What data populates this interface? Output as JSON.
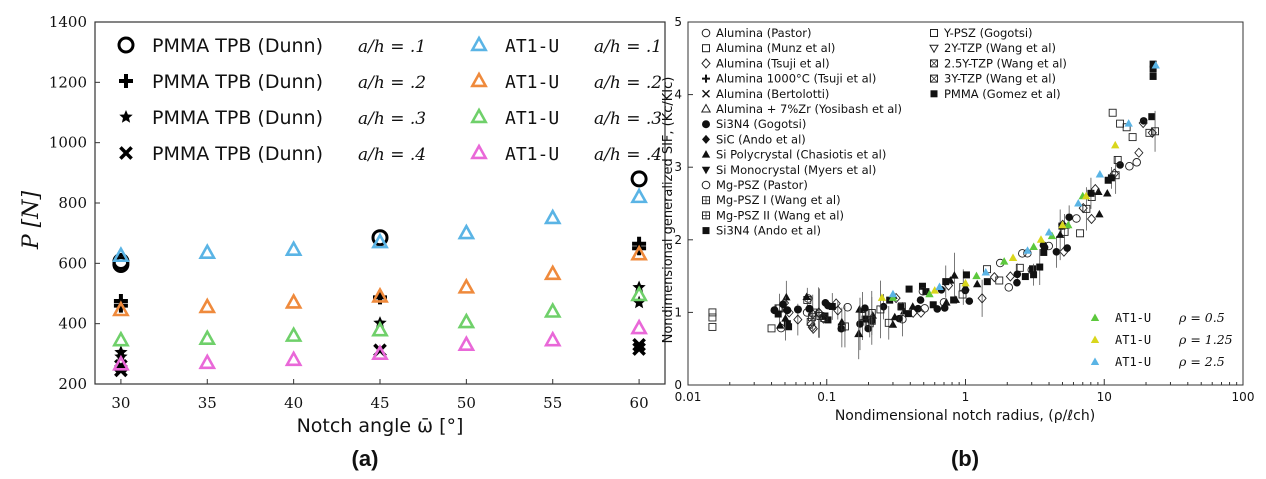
{
  "panel_labels": {
    "a": "(a)",
    "b": "(b)"
  },
  "chart_data": [
    {
      "type": "scatter",
      "panel": "(a)",
      "xlabel": "Notch angle ω̄ [°]",
      "ylabel": "P [N]",
      "xlim": [
        28.5,
        61.5
      ],
      "ylim": [
        200,
        1400
      ],
      "xticks": [
        30,
        35,
        40,
        45,
        50,
        55,
        60
      ],
      "yticks": [
        200,
        400,
        600,
        800,
        1000,
        1200,
        1400
      ],
      "grid": false,
      "legend": "top, two columns",
      "series": [
        {
          "name": "PMMA TPB (Dunn) a/h = .1",
          "marker": "circle",
          "color": "#000000",
          "x": [
            30,
            30,
            45,
            60
          ],
          "y": [
            596,
            606,
            685,
            880
          ]
        },
        {
          "name": "PMMA TPB (Dunn) a/h = .2",
          "marker": "plus",
          "color": "#000000",
          "x": [
            30,
            30,
            45,
            60,
            60
          ],
          "y": [
            460,
            475,
            487,
            650,
            665
          ]
        },
        {
          "name": "PMMA TPB (Dunn) a/h = .3",
          "marker": "star",
          "color": "#000000",
          "x": [
            30,
            30,
            45,
            60,
            60
          ],
          "y": [
            290,
            305,
            402,
            470,
            520
          ]
        },
        {
          "name": "PMMA TPB (Dunn) a/h = .4",
          "marker": "x",
          "color": "#000000",
          "x": [
            30,
            30,
            45,
            60,
            60
          ],
          "y": [
            245,
            260,
            312,
            316,
            330
          ]
        },
        {
          "name": "AT1-U a/h = .1",
          "marker": "triangle",
          "color": "#5ab4e5",
          "x": [
            30,
            35,
            40,
            45,
            50,
            55,
            60
          ],
          "y": [
            625,
            635,
            645,
            670,
            700,
            750,
            820
          ]
        },
        {
          "name": "AT1-U a/h = .2",
          "marker": "triangle",
          "color": "#ef8a3c",
          "x": [
            30,
            35,
            40,
            45,
            50,
            55,
            60
          ],
          "y": [
            445,
            455,
            470,
            490,
            520,
            565,
            630
          ]
        },
        {
          "name": "AT1-U a/h = .3",
          "marker": "triangle",
          "color": "#6fd06a",
          "x": [
            30,
            35,
            40,
            45,
            50,
            55,
            60
          ],
          "y": [
            345,
            350,
            360,
            378,
            405,
            440,
            495
          ]
        },
        {
          "name": "AT1-U a/h = .4",
          "marker": "triangle",
          "color": "#e968d8",
          "x": [
            30,
            35,
            40,
            45,
            50,
            55,
            60
          ],
          "y": [
            265,
            270,
            280,
            300,
            330,
            345,
            385
          ]
        }
      ],
      "legend_entries": [
        {
          "label": "PMMA TPB (Dunn)",
          "ratio": "a/h = .1",
          "marker": "circle",
          "color": "#000000"
        },
        {
          "label": "PMMA TPB (Dunn)",
          "ratio": "a/h = .2",
          "marker": "plus",
          "color": "#000000"
        },
        {
          "label": "PMMA TPB (Dunn)",
          "ratio": "a/h = .3",
          "marker": "star",
          "color": "#000000"
        },
        {
          "label": "PMMA TPB (Dunn)",
          "ratio": "a/h = .4",
          "marker": "x",
          "color": "#000000"
        },
        {
          "label": "AT1-U",
          "ratio": "a/h = .1",
          "marker": "triangle",
          "color": "#5ab4e5"
        },
        {
          "label": "AT1-U",
          "ratio": "a/h = .2",
          "marker": "triangle",
          "color": "#ef8a3c"
        },
        {
          "label": "AT1-U",
          "ratio": "a/h = .3",
          "marker": "triangle",
          "color": "#6fd06a"
        },
        {
          "label": "AT1-U",
          "ratio": "a/h = .4",
          "marker": "triangle",
          "color": "#e968d8"
        }
      ]
    },
    {
      "type": "scatter",
      "panel": "(b)",
      "xlabel": "Nondimensional notch radius, (ρ/ℓch)",
      "ylabel": "Nondimensional generalized SIF, (Kc/KIc)",
      "xscale": "log",
      "xlim": [
        0.01,
        100
      ],
      "ylim": [
        0,
        5
      ],
      "xticks": [
        0.01,
        0.1,
        1,
        10,
        100
      ],
      "xtick_labels": [
        "0.01",
        "0.1",
        "1",
        "10",
        "100"
      ],
      "yticks": [
        0,
        1,
        2,
        3,
        4,
        5
      ],
      "grid": false,
      "legend_top": [
        "Alumina (Pastor)",
        "Alumina (Munz et al)",
        "Alumina (Tsuji et al)",
        "Alumina 1000°C (Tsuji et al)",
        "Alumina (Bertolotti)",
        "Alumina + 7%Zr (Yosibash et al)",
        "Si3N4 (Gogotsi)",
        "SiC (Ando et al)",
        "Si Polycrystal (Chasiotis et al)",
        "Si Monocrystal (Myers et al)",
        "Mg-PSZ (Pastor)",
        "Mg-PSZ I (Wang et al)",
        "Mg-PSZ II (Wang et al)",
        "Si3N4 (Ando et al)"
      ],
      "legend_top_right": [
        "Y-PSZ (Gogotsi)",
        "2Y-TZP (Wang et al)",
        "2.5Y-TZP (Wang et al)",
        "3Y-TZP (Wang et al)",
        "PMMA (Gomez et al)"
      ],
      "series": [
        {
          "name": "AT1-U ρ = 0.5",
          "color": "#5cc83c",
          "x": [
            0.3,
            0.55,
            1.2,
            1.9,
            3.1,
            4.2,
            5.5,
            7.0
          ],
          "y": [
            1.2,
            1.25,
            1.5,
            1.7,
            1.9,
            2.05,
            2.2,
            2.6
          ]
        },
        {
          "name": "AT1-U ρ = 1.25",
          "color": "#d9d61c",
          "x": [
            0.25,
            0.6,
            1.0,
            2.2,
            3.5,
            5.0,
            7.4,
            12.0
          ],
          "y": [
            1.2,
            1.3,
            1.4,
            1.75,
            2.0,
            2.2,
            2.6,
            3.3
          ]
        },
        {
          "name": "AT1-U ρ = 2.5",
          "color": "#5ab4e5",
          "x": [
            0.3,
            0.65,
            1.4,
            2.8,
            4.0,
            6.5,
            9.3,
            15.0,
            23.5
          ],
          "y": [
            1.25,
            1.35,
            1.55,
            1.85,
            2.1,
            2.5,
            2.9,
            3.6,
            4.4
          ]
        }
      ],
      "legend_bottom": [
        {
          "label": "AT1-U",
          "param": "ρ = 0.5",
          "color": "#5cc83c"
        },
        {
          "label": "AT1-U",
          "param": "ρ = 1.25",
          "color": "#d9d61c"
        },
        {
          "label": "AT1-U",
          "param": "ρ = 2.5",
          "color": "#5ab4e5"
        }
      ]
    }
  ]
}
